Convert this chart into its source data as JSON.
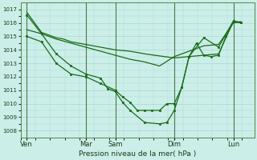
{
  "background_color": "#cceee8",
  "grid_color": "#aad8d0",
  "line_color": "#1a6b1a",
  "marker_color": "#1a6b1a",
  "xlabel": "Pression niveau de la mer( hPa )",
  "ylim": [
    1007.5,
    1017.5
  ],
  "yticks": [
    1008,
    1009,
    1010,
    1011,
    1012,
    1013,
    1014,
    1015,
    1016,
    1017
  ],
  "day_labels": [
    "Ven",
    "Mar",
    "Sam",
    "Dim",
    "Lun"
  ],
  "day_positions": [
    0,
    48,
    72,
    120,
    168
  ],
  "xlim": [
    -5,
    185
  ],
  "series1_x": [
    0,
    12,
    18,
    24,
    30,
    36,
    42,
    48,
    54,
    60,
    66,
    72,
    84,
    96,
    108,
    120,
    132,
    144,
    156,
    168,
    174
  ],
  "series1_y": [
    1016.8,
    1015.3,
    1015.1,
    1014.9,
    1014.8,
    1014.6,
    1014.5,
    1014.4,
    1014.3,
    1014.2,
    1014.1,
    1014.0,
    1013.9,
    1013.7,
    1013.55,
    1013.4,
    1013.5,
    1013.6,
    1013.7,
    1016.1,
    1016.0
  ],
  "series2_x": [
    0,
    12,
    24,
    36,
    48,
    60,
    72,
    84,
    96,
    108,
    120,
    132,
    144,
    156,
    168,
    174
  ],
  "series2_y": [
    1015.5,
    1015.2,
    1014.8,
    1014.5,
    1014.2,
    1013.9,
    1013.6,
    1013.3,
    1013.1,
    1012.8,
    1013.5,
    1013.9,
    1014.3,
    1014.4,
    1016.0,
    1016.1
  ],
  "series3_x": [
    0,
    12,
    24,
    36,
    48,
    60,
    66,
    72,
    78,
    84,
    96,
    108,
    114,
    120,
    126,
    132,
    144,
    156,
    168,
    174
  ],
  "series3_y": [
    1016.6,
    1015.2,
    1013.7,
    1012.8,
    1012.2,
    1011.9,
    1011.1,
    1010.9,
    1010.1,
    1009.5,
    1008.6,
    1008.5,
    1008.6,
    1009.5,
    1011.2,
    1013.5,
    1014.9,
    1014.2,
    1016.15,
    1016.05
  ],
  "series4_x": [
    0,
    12,
    24,
    36,
    48,
    60,
    72,
    78,
    84,
    90,
    96,
    102,
    108,
    114,
    120,
    126,
    132,
    138,
    144,
    150,
    156,
    162,
    168,
    174
  ],
  "series4_y": [
    1015.0,
    1014.6,
    1013.0,
    1012.2,
    1012.0,
    1011.5,
    1011.0,
    1010.5,
    1010.1,
    1009.5,
    1009.5,
    1009.5,
    1009.5,
    1010.0,
    1010.0,
    1011.2,
    1013.5,
    1014.5,
    1013.6,
    1013.5,
    1013.6,
    1015.0,
    1016.1,
    1016.05
  ]
}
